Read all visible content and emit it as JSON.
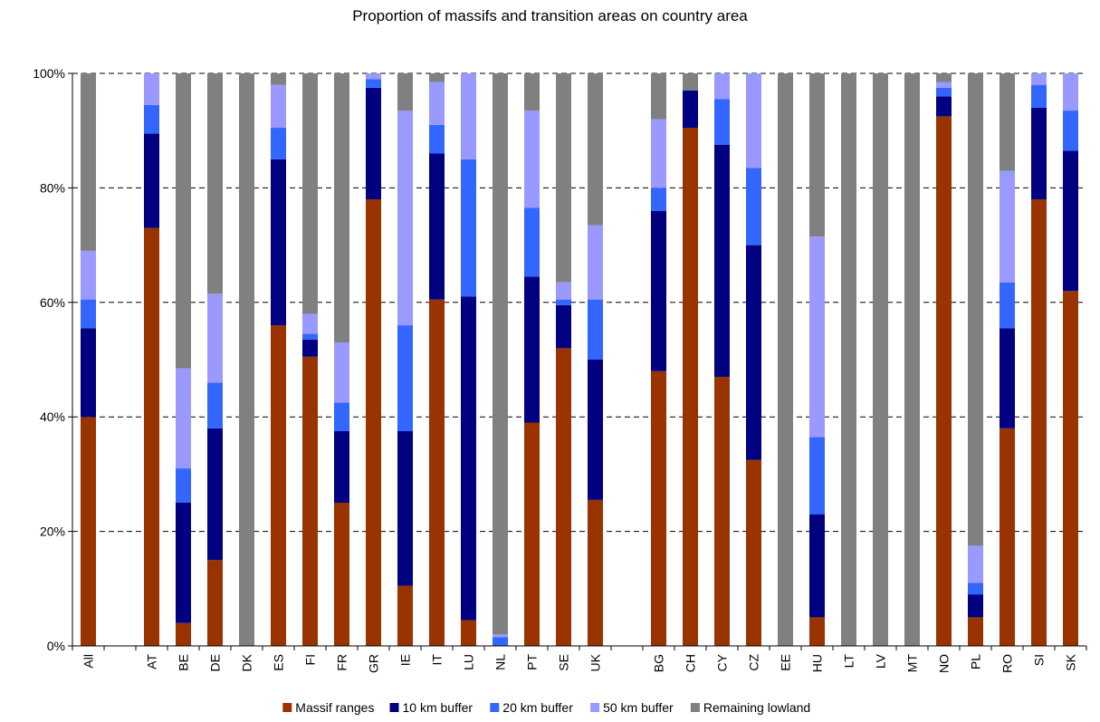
{
  "chart_data": {
    "type": "bar",
    "stacked": true,
    "percent_stacked": true,
    "title": "Proportion of massifs and transition areas on country area",
    "xlabel": "",
    "ylabel": "",
    "ylim": [
      0,
      100
    ],
    "y_ticks": [
      "0%",
      "20%",
      "40%",
      "60%",
      "80%",
      "100%"
    ],
    "grid": "horizontal dashed",
    "legend_position": "bottom",
    "categories": [
      "All",
      "",
      "AT",
      "BE",
      "DE",
      "DK",
      "ES",
      "FI",
      "FR",
      "GR",
      "IE",
      "IT",
      "LU",
      "NL",
      "PT",
      "SE",
      "UK",
      "",
      "BG",
      "CH",
      "CY",
      "CZ",
      "EE",
      "HU",
      "LT",
      "LV",
      "MT",
      "NO",
      "PL",
      "RO",
      "SI",
      "SK"
    ],
    "series": [
      {
        "name": "Massif ranges",
        "color": "#993300",
        "values": [
          40,
          null,
          73,
          4,
          15,
          0,
          56,
          50.5,
          25,
          78,
          10.5,
          60.5,
          4.5,
          0,
          39,
          52,
          25.5,
          null,
          48,
          90.5,
          47,
          32.5,
          0,
          5,
          0,
          0,
          0,
          92.5,
          5,
          38,
          78,
          62
        ]
      },
      {
        "name": "10 km buffer",
        "color": "#000080",
        "values": [
          15.5,
          null,
          16.5,
          21,
          23,
          0,
          29,
          3,
          12.5,
          19.5,
          27,
          25.5,
          56.5,
          0,
          25.5,
          7.5,
          24.5,
          null,
          28,
          6.5,
          40.5,
          37.5,
          0,
          18,
          0,
          0,
          0,
          3.5,
          4,
          17.5,
          16,
          24.5
        ]
      },
      {
        "name": "20 km buffer",
        "color": "#3366ff",
        "values": [
          5,
          null,
          5,
          6,
          8,
          0,
          5.5,
          1,
          5,
          1.5,
          18.5,
          5,
          24,
          1.5,
          12,
          1,
          10.5,
          null,
          4,
          0,
          8,
          13.5,
          0,
          13.5,
          0,
          0,
          0,
          1.5,
          2,
          8,
          4,
          7
        ]
      },
      {
        "name": "50 km buffer",
        "color": "#9999ff",
        "values": [
          8.5,
          null,
          5.5,
          17.5,
          15.5,
          0,
          7.5,
          3.5,
          10.5,
          1,
          37.5,
          7.5,
          15,
          0.5,
          17,
          3,
          13,
          null,
          12,
          0,
          4.5,
          16.5,
          0,
          35,
          0,
          0,
          0,
          1,
          6.5,
          19.5,
          2,
          6.5
        ]
      },
      {
        "name": "Remaining lowland",
        "color": "#808080",
        "values": [
          31,
          null,
          0,
          51.5,
          38.5,
          100,
          2,
          42,
          47,
          0,
          6.5,
          1.5,
          0,
          98,
          6.5,
          36.5,
          26.5,
          null,
          8,
          3,
          0,
          0,
          100,
          28.5,
          100,
          100,
          100,
          1.5,
          82.5,
          17,
          0,
          0
        ]
      }
    ]
  }
}
